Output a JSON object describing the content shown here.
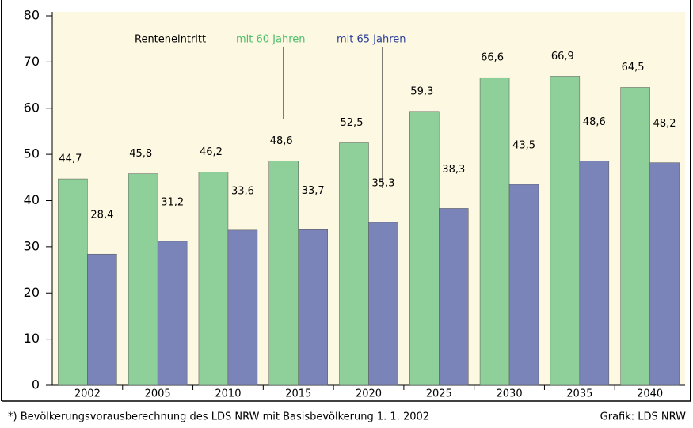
{
  "chart_data": {
    "type": "bar",
    "categories": [
      "2002",
      "2005",
      "2010",
      "2015",
      "2020",
      "2025",
      "2030",
      "2035",
      "2040"
    ],
    "legend_title": "Renteneintritt",
    "series": [
      {
        "name": "mit 60 Jahren",
        "color": "#8fcf9a",
        "values": [
          44.7,
          45.8,
          46.2,
          48.6,
          52.5,
          59.3,
          66.6,
          66.9,
          64.5
        ],
        "value_labels": [
          "44,7",
          "45,8",
          "46,2",
          "48,6",
          "52,5",
          "59,3",
          "66,6",
          "66,9",
          "64,5"
        ]
      },
      {
        "name": "mit 65 Jahren",
        "color": "#7b84b8",
        "values": [
          28.4,
          31.2,
          33.6,
          33.7,
          35.3,
          38.3,
          43.5,
          48.6,
          48.2
        ],
        "value_labels": [
          "28,4",
          "31,2",
          "33,6",
          "33,7",
          "35,3",
          "38,3",
          "43,5",
          "48,6",
          "48,2"
        ]
      }
    ],
    "legend_colors": [
      "#000000",
      "#4cbf6a",
      "#2b3f9a"
    ],
    "ylim": [
      0,
      80
    ],
    "yticks": [
      0,
      10,
      20,
      30,
      40,
      50,
      60,
      70,
      80
    ],
    "background": "#fdf8e1",
    "footnote": "*) Bevölkerungsvorausberechnung des LDS NRW mit Basisbevölkerung 1. 1. 2002",
    "source": "Grafik: LDS NRW"
  }
}
